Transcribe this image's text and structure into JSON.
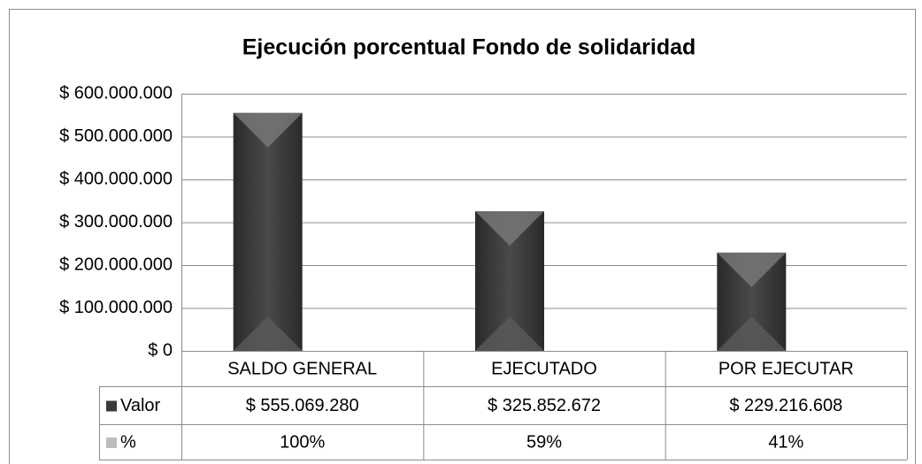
{
  "chart_data": {
    "type": "bar",
    "title": "Ejecución porcentual Fondo de solidaridad",
    "categories": [
      "SALDO GENERAL",
      "EJECUTADO",
      "POR EJECUTAR"
    ],
    "series": [
      {
        "name": "Valor",
        "color": "#3a3a3a",
        "values": [
          555069280,
          325852672,
          229216608
        ],
        "value_labels": [
          "$ 555.069.280",
          "$ 325.852.672",
          "$ 229.216.608"
        ]
      },
      {
        "name": "%",
        "color": "#bdbdbd",
        "values": [
          100,
          59,
          41
        ],
        "value_labels": [
          "100%",
          "59%",
          "41%"
        ]
      }
    ],
    "ylim": [
      0,
      600000000
    ],
    "yticks": [
      {
        "value": 0,
        "label": "$ 0"
      },
      {
        "value": 100000000,
        "label": "$ 100.000.000"
      },
      {
        "value": 200000000,
        "label": "$ 200.000.000"
      },
      {
        "value": 300000000,
        "label": "$ 300.000.000"
      },
      {
        "value": 400000000,
        "label": "$ 400.000.000"
      },
      {
        "value": 500000000,
        "label": "$ 500.000.000"
      },
      {
        "value": 600000000,
        "label": "$ 600.000.000"
      }
    ],
    "grid": true,
    "data_table": true
  }
}
